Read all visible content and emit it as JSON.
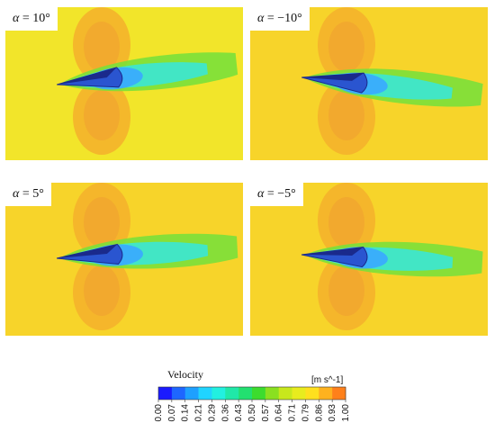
{
  "panels": [
    {
      "id": "top-left",
      "symbol": "α",
      "value_text": "= 10°",
      "angle_deg": 10
    },
    {
      "id": "top-right",
      "symbol": "α",
      "value_text": "= −10°",
      "angle_deg": -10
    },
    {
      "id": "bottom-left",
      "symbol": "α",
      "value_text": "= 5°",
      "angle_deg": 5
    },
    {
      "id": "bottom-right",
      "symbol": "α",
      "value_text": "= −5°",
      "angle_deg": -5
    }
  ],
  "legend": {
    "title": "Velocity",
    "unit": "[m s^-1]",
    "ticks": [
      "0.00",
      "0.07",
      "0.14",
      "0.21",
      "0.29",
      "0.36",
      "0.43",
      "0.50",
      "0.57",
      "0.64",
      "0.71",
      "0.79",
      "0.86",
      "0.93",
      "1.00"
    ],
    "colors": [
      "#1a1aff",
      "#1e66ff",
      "#1ea0ff",
      "#20d4ff",
      "#22f0e0",
      "#20e8a8",
      "#22e070",
      "#3cdc2e",
      "#8ae020",
      "#c8e81c",
      "#e8ec1e",
      "#ffe01e",
      "#ffb21e",
      "#ff801a"
    ]
  },
  "colors": {
    "background_flow": "#f2e52a",
    "background_flow_alt": "#f7d42a",
    "high_pressure": "#f4b02c",
    "body_dark": "#1a2a8c",
    "body_mid": "#2a55d0",
    "wake_cyan": "#3ee6cc",
    "wake_green": "#7ae03a"
  }
}
